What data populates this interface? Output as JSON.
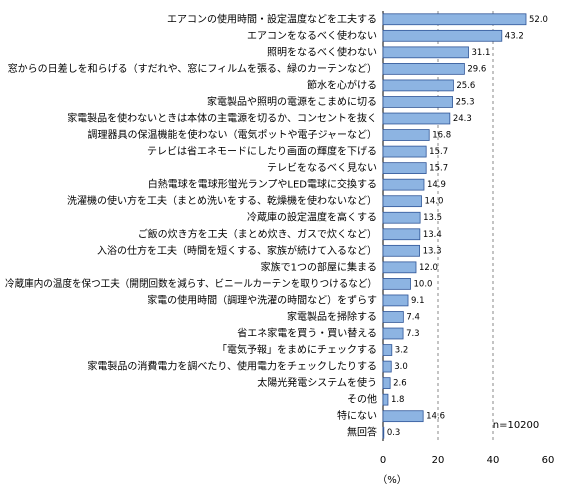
{
  "chart_data": {
    "type": "hbar",
    "categories": [
      "エアコンの使用時間・設定温度などを工夫する",
      "エアコンをなるべく使わない",
      "照明をなるべく使わない",
      "窓からの日差しを和らげる（すだれや、窓にフィルムを張る、緑のカーテンなど）",
      "節水を心がける",
      "家電製品や照明の電源をこまめに切る",
      "家電製品を使わないときは本体の主電源を切るか、コンセントを抜く",
      "調理器具の保温機能を使わない（電気ポットや電子ジャーなど）",
      "テレビは省エネモードにしたり画面の輝度を下げる",
      "テレビをなるべく見ない",
      "白熱電球を電球形蛍光ランプやLED電球に交換する",
      "洗濯機の使い方を工夫（まとめ洗いをする、乾燥機を使わないなど）",
      "冷蔵庫の設定温度を高くする",
      "ご飯の炊き方を工夫（まとめ炊き、ガスで炊くなど）",
      "入浴の仕方を工夫（時間を短くする、家族が続けて入るなど）",
      "家族で1つの部屋に集まる",
      "冷蔵庫内の温度を保つ工夫（開閉回数を減らす、ビニールカーテンを取りつけるなど）",
      "家電の使用時間（調理や洗濯の時間など）をずらす",
      "家電製品を掃除する",
      "省エネ家電を買う・買い替える",
      "「電気予報」をまめにチェックする",
      "家電製品の消費電力を調べたり、使用電力をチェックしたりする",
      "太陽光発電システムを使う",
      "その他",
      "特にない",
      "無回答"
    ],
    "values": [
      52.0,
      43.2,
      31.1,
      29.6,
      25.6,
      25.3,
      24.3,
      16.8,
      15.7,
      15.7,
      14.9,
      14.0,
      13.5,
      13.4,
      13.3,
      12.0,
      10.0,
      9.1,
      7.4,
      7.3,
      3.2,
      3.0,
      2.6,
      1.8,
      14.6,
      0.3
    ],
    "value_labels": [
      "52.0",
      "43.2",
      "31.1",
      "29.6",
      "25.6",
      "25.3",
      "24.3",
      "16.8",
      "15.7",
      "15.7",
      "14.9",
      "14.0",
      "13.5",
      "13.4",
      "13.3",
      "12.0",
      "10.0",
      "9.1",
      "7.4",
      "7.3",
      "3.2",
      "3.0",
      "2.6",
      "1.8",
      "14.6",
      "0.3"
    ],
    "color": "#8db4e2",
    "xlim": [
      0,
      60
    ],
    "xticks": [
      0,
      20,
      40,
      60
    ],
    "grid": true,
    "xlabel": "（%）",
    "annotation": "n=10200"
  }
}
